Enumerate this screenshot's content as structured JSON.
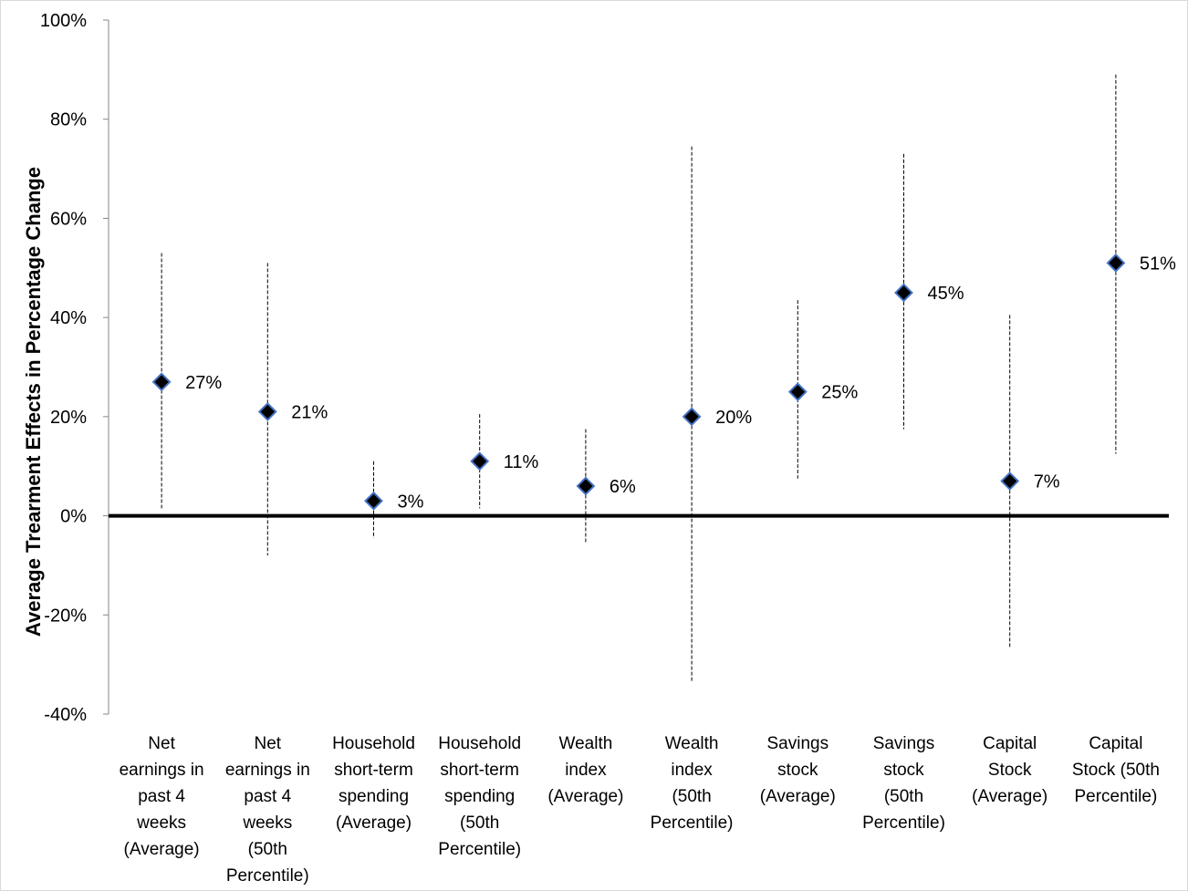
{
  "chart_data": {
    "type": "scatter",
    "title": "",
    "xlabel": "",
    "ylabel": "Average Trearment Effects in Percentage Change",
    "ylim": [
      -40,
      100
    ],
    "yticks": [
      -40,
      -20,
      0,
      20,
      40,
      60,
      80,
      100
    ],
    "ytick_labels": [
      "-40%",
      "-20%",
      "0%",
      "20%",
      "40%",
      "60%",
      "80%",
      "100%"
    ],
    "grid": false,
    "legend": "none",
    "marker": "diamond",
    "colors": {
      "marker_fill": "#000000",
      "marker_edge": "#4472c4",
      "error_bar": "#000000",
      "zero_line": "#000000"
    },
    "categories": [
      [
        "Net",
        "earnings in",
        "past 4",
        "weeks",
        "(Average)"
      ],
      [
        "Net",
        "earnings in",
        "past 4",
        "weeks",
        "(50th",
        "Percentile)"
      ],
      [
        "Household",
        "short-term",
        "spending",
        "(Average)"
      ],
      [
        "Household",
        "short-term",
        "spending",
        "(50th",
        "Percentile)"
      ],
      [
        "Wealth",
        "index",
        "(Average)"
      ],
      [
        "Wealth",
        "index",
        "(50th",
        "Percentile)"
      ],
      [
        "Savings",
        "stock",
        "(Average)"
      ],
      [
        "Savings",
        "stock",
        "(50th",
        "Percentile)"
      ],
      [
        "Capital",
        "Stock",
        "(Average)"
      ],
      [
        "Capital",
        "Stock (50th",
        "Percentile)"
      ]
    ],
    "values": [
      27,
      21,
      3,
      11,
      6,
      20,
      25,
      45,
      7,
      51
    ],
    "data_labels": [
      "27%",
      "21%",
      "3%",
      "11%",
      "6%",
      "20%",
      "25%",
      "45%",
      "7%",
      "51%"
    ],
    "ci_low": [
      1.5,
      -8,
      -4.5,
      1.5,
      -5.5,
      -33.5,
      7.5,
      17.5,
      -26.5,
      12.5
    ],
    "ci_high": [
      53,
      51,
      11,
      20.5,
      17.5,
      74.5,
      43.5,
      73,
      40.5,
      89
    ]
  }
}
